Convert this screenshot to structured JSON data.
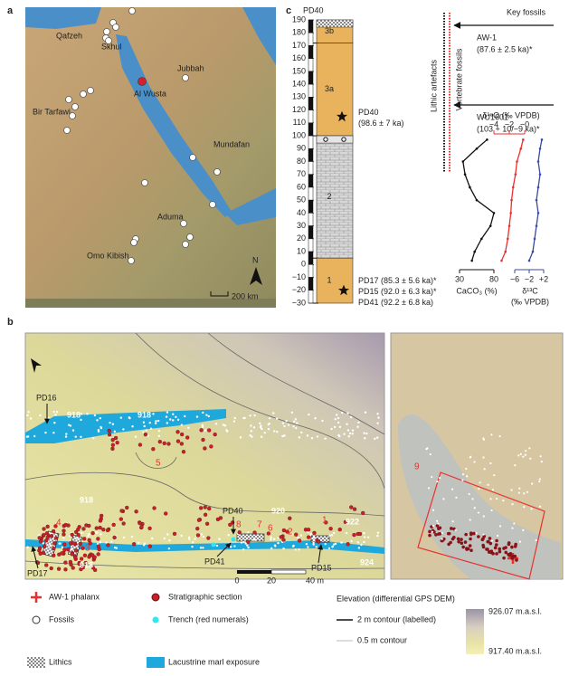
{
  "panels": {
    "a": {
      "label": "a",
      "places": [
        "Qafzeh",
        "Skhul",
        "Jubbah",
        "Al Wusta",
        "Bir Tarfawi",
        "Mundafan",
        "Aduma",
        "Omo Kibish"
      ],
      "north": "N",
      "scale_bar": "200 km"
    },
    "c": {
      "label": "c",
      "section": "PD40",
      "depth_lim": [
        -30,
        190
      ],
      "depth_ticks": [
        190,
        180,
        170,
        160,
        150,
        140,
        130,
        120,
        110,
        100,
        90,
        80,
        70,
        60,
        50,
        40,
        30,
        20,
        10,
        0,
        {
          "value": -10,
          "label": "−10"
        },
        {
          "value": -20,
          "label": "−20"
        },
        {
          "value": -30,
          "label": "−30"
        }
      ],
      "units": [
        {
          "label": "3b",
          "top": 190,
          "bottom": 172
        },
        {
          "label": "3a",
          "top": 172,
          "bottom": 100
        },
        {
          "label": "2",
          "top": 100,
          "bottom": 5
        },
        {
          "label": "1",
          "top": 5,
          "bottom": -30
        }
      ],
      "upper_sample": [
        "PD40",
        "(98.6 ± 7 ka)"
      ],
      "lower_samples": [
        "PD17 (85.3 ± 5.6 ka)*",
        "PD15 (92.0 ± 6.3 ka)*",
        "PD41 (92.2 ± 6.8 ka)"
      ],
      "key_fossils": {
        "title": "Key fossils",
        "items": [
          {
            "name": "AW-1",
            "age": "(87.6 ± 2.5 ka)*"
          },
          {
            "name": "WU1601",
            "age": "(103 + 10/−9 ka)*"
          }
        ]
      },
      "lithic_label": "Lithic artefacts",
      "vertebrate_label": "Vertebrate fossils",
      "geochem": {
        "depths": [
          97,
          90,
          80,
          70,
          60,
          50,
          40,
          30,
          20,
          10,
          3
        ],
        "caco3": {
          "label": "CaCO₃ (%)",
          "color": "#111111",
          "xlim": [
            30,
            80
          ],
          "ticks": [
            30,
            80
          ],
          "values": [
            70,
            55,
            35,
            38,
            45,
            55,
            80,
            75,
            62,
            52,
            48
          ]
        },
        "d18o": {
          "label": "δ¹⁸O (‰ VPDB)",
          "color": "#e8312f",
          "xlim": [
            -4,
            0
          ],
          "ticks": [
            {
              "value": -4,
              "label": "−4"
            },
            {
              "value": -2,
              "label": "−2"
            },
            {
              "value": 0,
              "label": "−0"
            }
          ],
          "values": [
            -0.2,
            -0.5,
            -1,
            -1.2,
            -1.5,
            -1.7,
            -1.8,
            -2,
            -2.2,
            -2.5,
            -3
          ]
        },
        "d13c": {
          "label": "δ¹³C",
          "unit": "(‰ VPDB)",
          "color": "#3a4ba0",
          "xlim": [
            -6,
            2
          ],
          "ticks": [
            {
              "value": -6,
              "label": "−6"
            },
            {
              "value": -2,
              "label": "−2"
            },
            {
              "value": 2,
              "label": "+2"
            }
          ],
          "values": [
            1.5,
            1,
            0.5,
            1,
            0.5,
            0,
            0.5,
            0,
            -0.5,
            -1,
            -2
          ]
        }
      }
    },
    "b": {
      "label": "b",
      "sites": [
        "PD16",
        "PD40",
        "PD41",
        "PD17",
        "PD15"
      ],
      "contours": [
        918,
        918,
        918,
        918,
        920,
        922,
        924
      ],
      "trenches": [
        "1",
        "2",
        "3",
        "4",
        "5",
        "6",
        "7",
        "8",
        "9"
      ],
      "scale_ticks": [
        0,
        20,
        {
          "value": 40,
          "label": "40 m"
        }
      ]
    }
  },
  "legend": {
    "items": [
      "AW-1 phalanx",
      "Fossils",
      "Lithics",
      "Stratigraphic section",
      "Trench (red numerals)",
      "Lacustrine marl exposure"
    ],
    "elevation": {
      "title": "Elevation (differential GPS DEM)",
      "contour_major": "2 m contour (labelled)",
      "contour_minor": "0.5 m contour",
      "max": "926.07 m.a.s.l.",
      "min": "917.40 m.a.s.l."
    }
  }
}
